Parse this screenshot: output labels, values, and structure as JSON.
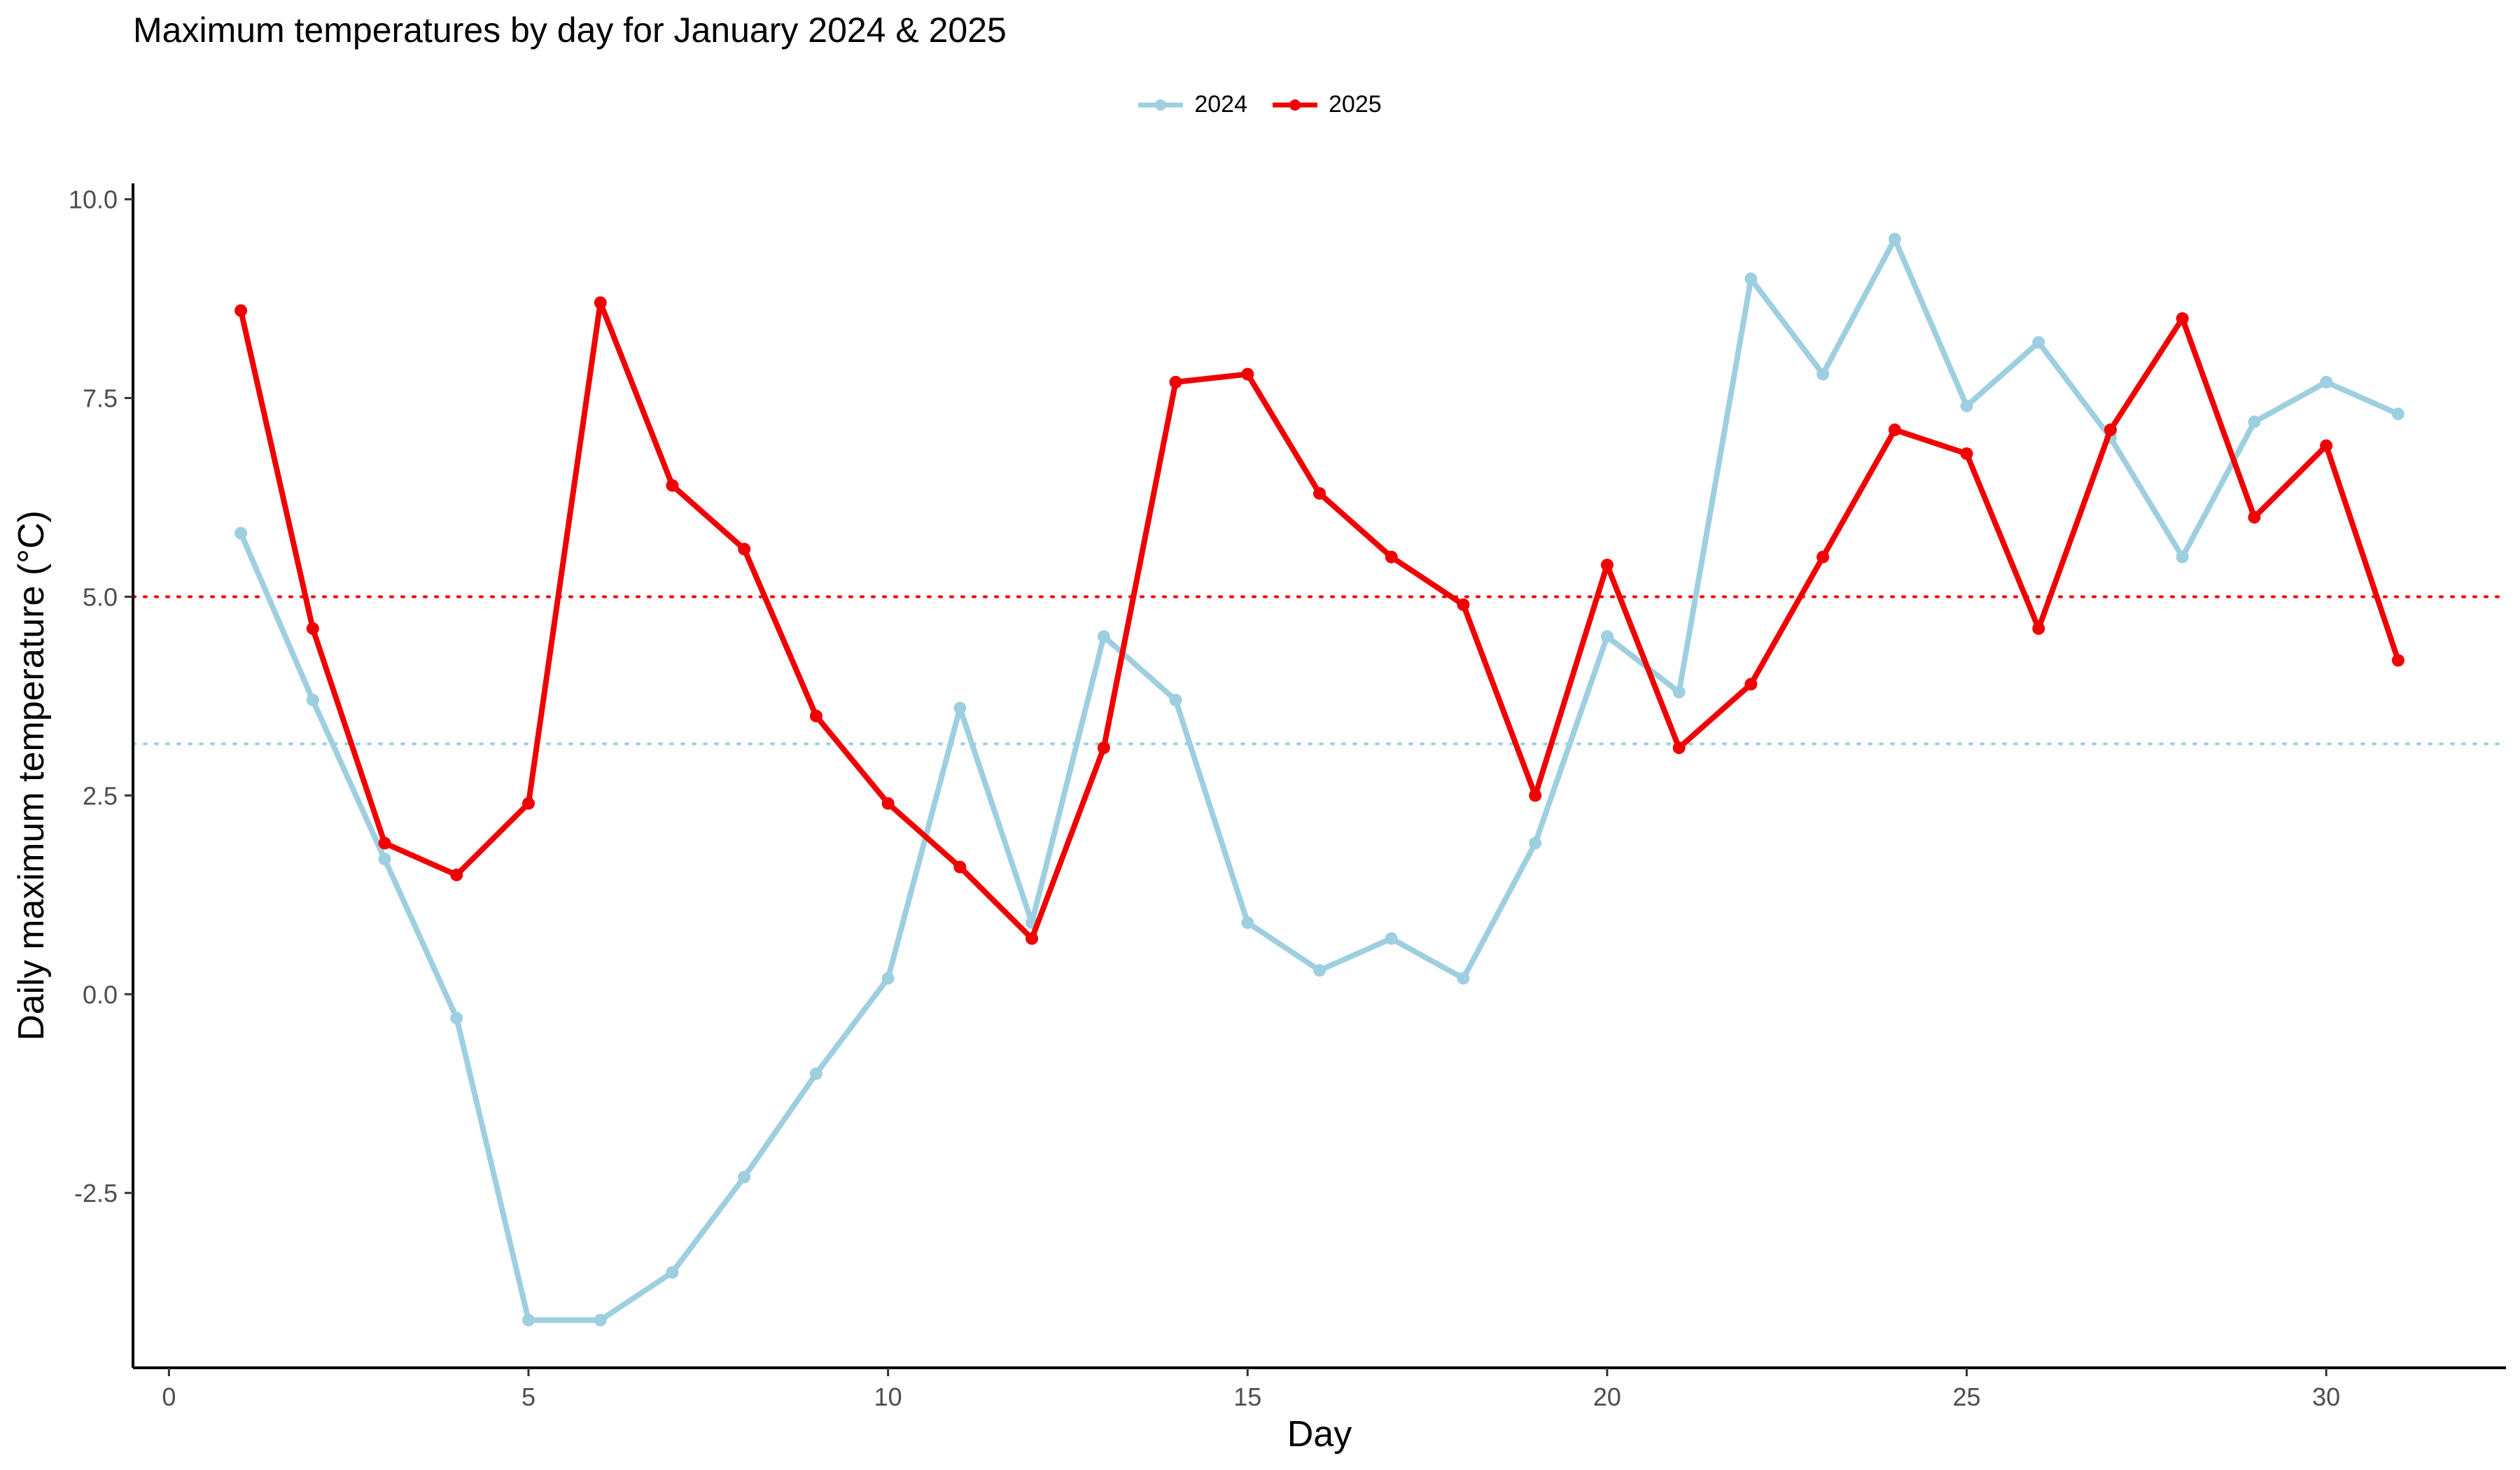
{
  "chart_data": {
    "type": "line",
    "title": "Maximum temperatures by day for January 2024 & 2025",
    "xlabel": "Day",
    "ylabel": "Daily maximum temperature (°C)",
    "xlim": [
      -0.5,
      32.5
    ],
    "ylim": [
      -4.7,
      10.2
    ],
    "x_ticks": [
      0,
      5,
      10,
      15,
      20,
      25,
      30
    ],
    "x_tick_labels": [
      "0",
      "5",
      "10",
      "15",
      "20",
      "25",
      "30"
    ],
    "y_ticks": [
      -2.5,
      0,
      2.5,
      5,
      7.5,
      10
    ],
    "y_tick_labels": [
      "-2.5",
      "0.0",
      "2.5",
      "5.0",
      "7.5",
      "10.0"
    ],
    "grid": false,
    "legend_position": "top",
    "x": [
      1,
      2,
      3,
      4,
      5,
      6,
      7,
      8,
      9,
      10,
      11,
      12,
      13,
      14,
      15,
      16,
      17,
      18,
      19,
      20,
      21,
      22,
      23,
      24,
      25,
      26,
      27,
      28,
      29,
      30,
      31
    ],
    "series": [
      {
        "name": "2024",
        "color": "#9ecfe0",
        "values": [
          5.8,
          3.7,
          1.7,
          -0.3,
          -4.1,
          -4.1,
          -3.5,
          -2.3,
          -1.0,
          0.2,
          3.6,
          0.9,
          4.5,
          3.7,
          0.9,
          0.3,
          0.7,
          0.2,
          1.9,
          4.5,
          3.8,
          9.0,
          7.8,
          9.5,
          7.4,
          8.2,
          7.0,
          5.5,
          7.2,
          7.7,
          7.3
        ],
        "mean": 3.15
      },
      {
        "name": "2025",
        "color": "#f00000",
        "values": [
          8.6,
          4.6,
          1.9,
          1.5,
          2.4,
          8.7,
          6.4,
          5.6,
          3.5,
          2.4,
          1.6,
          0.7,
          3.1,
          7.7,
          7.8,
          6.3,
          5.5,
          4.9,
          2.5,
          5.4,
          3.1,
          3.9,
          5.5,
          7.1,
          6.8,
          4.6,
          7.1,
          8.5,
          6.0,
          6.9,
          4.2
        ],
        "mean": 5.0
      }
    ]
  }
}
